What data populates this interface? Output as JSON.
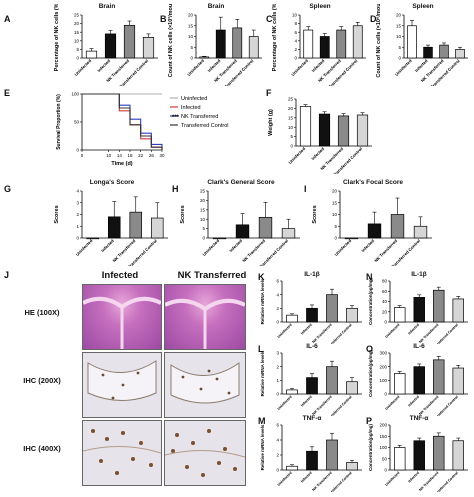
{
  "panels": {
    "A": {
      "letter": "A",
      "title": "Brain",
      "ylabel": "Percentage of NK cells (%)",
      "yticks": [
        "0",
        "5",
        "10",
        "15",
        "20",
        "25"
      ],
      "ymax": 25
    },
    "B": {
      "letter": "B",
      "title": "Brain",
      "ylabel": "Count of NK cells (×10³/mouse)",
      "yticks": [
        "0",
        "5",
        "10",
        "15",
        "20"
      ],
      "ymax": 20
    },
    "C": {
      "letter": "C",
      "title": "Spleen",
      "ylabel": "Percentage of NK cells (%)",
      "yticks": [
        "0",
        "2",
        "4",
        "6",
        "8",
        "10"
      ],
      "ymax": 10
    },
    "D": {
      "letter": "D",
      "title": "Spleen",
      "ylabel": "Count of NK cells (×10⁶/mouse)",
      "yticks": [
        "0",
        "5",
        "10",
        "15",
        "20"
      ],
      "ymax": 20
    },
    "E": {
      "letter": "E",
      "ylabel": "Survival Proportion (%)",
      "xlabel": "Time (d)",
      "yticks": [
        "0",
        "50",
        "100"
      ],
      "xticks": [
        "0",
        "10",
        "14",
        "18",
        "22",
        "26",
        "30"
      ],
      "sig": "***"
    },
    "F": {
      "letter": "F",
      "ylabel": "Weight (g)",
      "yticks": [
        "0",
        "5",
        "10",
        "15",
        "20",
        "25"
      ],
      "ymax": 25
    },
    "G": {
      "letter": "G",
      "title": "Longa's Score",
      "ylabel": "Scores",
      "yticks": [
        "0",
        "1",
        "2",
        "3",
        "4"
      ],
      "ymax": 4
    },
    "H": {
      "letter": "H",
      "title": "Clark's General Score",
      "ylabel": "Scores",
      "yticks": [
        "0",
        "5",
        "10",
        "15",
        "20",
        "25"
      ],
      "ymax": 25
    },
    "I": {
      "letter": "I",
      "title": "Clark's Focal Score",
      "ylabel": "Scores",
      "yticks": [
        "0",
        "5",
        "10",
        "15",
        "20"
      ],
      "ymax": 20
    },
    "J": {
      "letter": "J",
      "col1": "Infected",
      "col2": "NK  Transferred",
      "rows": [
        "HE (100X)",
        "IHC (200X)",
        "IHC (400X)"
      ]
    },
    "K": {
      "letter": "K",
      "title": "IL-1β",
      "ylabel": "Relative mRNA levels",
      "yticks": [
        "0",
        "2",
        "4",
        "6"
      ],
      "ymax": 6
    },
    "L": {
      "letter": "L",
      "title": "IL-6",
      "ylabel": "Relative mRNA levels",
      "yticks": [
        "0",
        "1",
        "2",
        "3"
      ],
      "ymax": 3
    },
    "M": {
      "letter": "M",
      "title": "TNF-α",
      "ylabel": "Relative mRNA levels",
      "yticks": [
        "0",
        "2",
        "4",
        "6"
      ],
      "ymax": 6
    },
    "N": {
      "letter": "N",
      "title": "IL-1β",
      "ylabel": "Concentration(pg/mg)",
      "yticks": [
        "0",
        "20",
        "40",
        "60",
        "80"
      ],
      "ymax": 80
    },
    "O": {
      "letter": "O",
      "title": "IL-6",
      "ylabel": "Concentration(pg/mg)",
      "yticks": [
        "0",
        "100",
        "200",
        "300"
      ],
      "ymax": 300
    },
    "P": {
      "letter": "P",
      "title": "TNF-α",
      "ylabel": "Concentration(pg/mg)",
      "yticks": [
        "0",
        "50",
        "100",
        "150",
        "200"
      ],
      "ymax": 200
    }
  },
  "groups": [
    "Uninfected",
    "Infected",
    "NK Transferred",
    "Transferred Control"
  ],
  "legend": [
    "Uninfected",
    "Infected",
    "NK Transferred",
    "Transferred Control"
  ],
  "colors": {
    "uninfected": "#ffffff",
    "infected": "#111111",
    "nk": "#8a8a8a",
    "control": "#d6d6d6",
    "line_uninfected": "#b0b0b0",
    "line_infected": "#333333",
    "line_nk": "#2e3fbf",
    "line_control": "#d03a3a"
  },
  "chart_data": [
    {
      "panel": "A",
      "type": "bar",
      "categories": [
        "Uninfected",
        "Infected",
        "NK Transferred",
        "Transferred Control"
      ],
      "values": [
        4,
        14,
        19,
        12
      ],
      "errors": [
        1.5,
        2,
        2.5,
        2
      ],
      "ylim": [
        0,
        25
      ]
    },
    {
      "panel": "B",
      "type": "bar",
      "categories": [
        "Uninfected",
        "Infected",
        "NK Transferred",
        "Transferred Control"
      ],
      "values": [
        0.5,
        13,
        14,
        10
      ],
      "errors": [
        0.3,
        6,
        4,
        3
      ],
      "ylim": [
        0,
        20
      ]
    },
    {
      "panel": "C",
      "type": "bar",
      "categories": [
        "Uninfected",
        "Infected",
        "NK Transferred",
        "Transferred Control"
      ],
      "values": [
        6.5,
        5,
        6.5,
        7.5
      ],
      "errors": [
        0.8,
        0.7,
        0.8,
        0.8
      ],
      "ylim": [
        0,
        10
      ]
    },
    {
      "panel": "D",
      "type": "bar",
      "categories": [
        "Uninfected",
        "Infected",
        "NK Transferred",
        "Transferred Control"
      ],
      "values": [
        15,
        5,
        6,
        4
      ],
      "errors": [
        2.5,
        1,
        1,
        1
      ],
      "ylim": [
        0,
        20
      ]
    },
    {
      "panel": "E",
      "type": "line",
      "x": [
        0,
        10,
        14,
        18,
        22,
        26,
        30
      ],
      "series": [
        {
          "name": "Uninfected",
          "values": [
            100,
            100,
            100,
            100,
            100,
            100,
            100
          ]
        },
        {
          "name": "Infected",
          "values": [
            100,
            100,
            70,
            45,
            20,
            5,
            0
          ]
        },
        {
          "name": "NK Transferred",
          "values": [
            100,
            100,
            80,
            55,
            30,
            10,
            0
          ]
        },
        {
          "name": "Transferred Control",
          "values": [
            100,
            100,
            75,
            45,
            25,
            5,
            0
          ]
        }
      ],
      "ylim": [
        0,
        100
      ]
    },
    {
      "panel": "F",
      "type": "bar",
      "categories": [
        "Uninfected",
        "Infected",
        "NK Transferred",
        "Transferred Control"
      ],
      "values": [
        21,
        17,
        16,
        16.5
      ],
      "errors": [
        1,
        1.2,
        1.2,
        1.2
      ],
      "ylim": [
        0,
        25
      ]
    },
    {
      "panel": "G",
      "type": "bar",
      "categories": [
        "Uninfected",
        "Infected",
        "NK Transferred",
        "Transferred Control"
      ],
      "values": [
        0,
        1.8,
        2.2,
        1.7
      ],
      "errors": [
        0,
        1.3,
        1.3,
        1.3
      ],
      "ylim": [
        0,
        4
      ]
    },
    {
      "panel": "H",
      "type": "bar",
      "categories": [
        "Uninfected",
        "Infected",
        "NK Transferred",
        "Transferred Control"
      ],
      "values": [
        0,
        7,
        11,
        5
      ],
      "errors": [
        0,
        6,
        8,
        5
      ],
      "ylim": [
        0,
        25
      ]
    },
    {
      "panel": "I",
      "type": "bar",
      "categories": [
        "Uninfected",
        "Infected",
        "NK Transferred",
        "Transferred Control"
      ],
      "values": [
        0,
        6,
        10,
        5
      ],
      "errors": [
        0,
        5,
        7,
        4
      ],
      "ylim": [
        0,
        20
      ]
    },
    {
      "panel": "K",
      "type": "bar",
      "categories": [
        "Uninfected",
        "Infected",
        "NK Transferred",
        "Transferred Control"
      ],
      "values": [
        1,
        2,
        4,
        2
      ],
      "errors": [
        0.2,
        0.5,
        0.8,
        0.4
      ],
      "ylim": [
        0,
        6
      ]
    },
    {
      "panel": "L",
      "type": "bar",
      "categories": [
        "Uninfected",
        "Infected",
        "NK Transferred",
        "Transferred Control"
      ],
      "values": [
        0.3,
        1.2,
        2,
        0.9
      ],
      "errors": [
        0.1,
        0.3,
        0.4,
        0.3
      ],
      "ylim": [
        0,
        3
      ]
    },
    {
      "panel": "M",
      "type": "bar",
      "categories": [
        "Uninfected",
        "Infected",
        "NK Transferred",
        "Transferred Control"
      ],
      "values": [
        0.5,
        2.5,
        4,
        1
      ],
      "errors": [
        0.2,
        0.6,
        0.9,
        0.3
      ],
      "ylim": [
        0,
        6
      ]
    },
    {
      "panel": "N",
      "type": "bar",
      "categories": [
        "Uninfected",
        "Infected",
        "NK Transferred",
        "Transferred Control"
      ],
      "values": [
        28,
        48,
        62,
        45
      ],
      "errors": [
        4,
        5,
        6,
        5
      ],
      "ylim": [
        0,
        80
      ]
    },
    {
      "panel": "O",
      "type": "bar",
      "categories": [
        "Uninfected",
        "Infected",
        "NK Transferred",
        "Transferred Control"
      ],
      "values": [
        150,
        200,
        250,
        190
      ],
      "errors": [
        15,
        20,
        25,
        20
      ],
      "ylim": [
        0,
        300
      ]
    },
    {
      "panel": "P",
      "type": "bar",
      "categories": [
        "Uninfected",
        "Infected",
        "NK Transferred",
        "Transferred Control"
      ],
      "values": [
        100,
        130,
        150,
        130
      ],
      "errors": [
        10,
        12,
        15,
        12
      ],
      "ylim": [
        0,
        200
      ]
    }
  ]
}
